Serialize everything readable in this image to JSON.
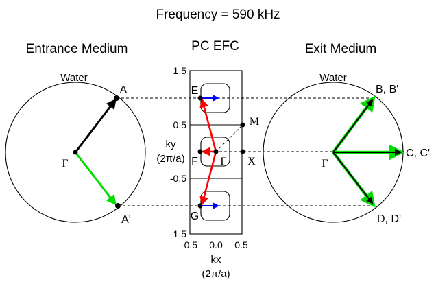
{
  "title": "Frequency = 590 kHz",
  "entrance": {
    "heading": "Entrance Medium",
    "medium": "Water",
    "gamma": "Γ",
    "point_a": "A",
    "point_a_prime": "A'"
  },
  "efc": {
    "heading": "PC EFC",
    "ky_label": "ky",
    "ky_unit": "(2π/a)",
    "kx_label": "kx",
    "kx_unit": "(2π/a)",
    "y_ticks": [
      "1.5",
      "0.5",
      "-0.5",
      "-1.5"
    ],
    "x_ticks": [
      "-0.5",
      "0.0",
      "0.5"
    ],
    "points": {
      "E": "E",
      "F": "F",
      "G": "G",
      "gamma": "Γ",
      "M": "M",
      "X": "X"
    }
  },
  "exit": {
    "heading": "Exit Medium",
    "medium": "Water",
    "gamma": "Γ",
    "point_b": "B, B'",
    "point_c": "C, C'",
    "point_d": "D, D'"
  },
  "colors": {
    "incident": "#000000",
    "reflected": "#00dd00",
    "efc_vector": "#ff0000",
    "group_velocity": "#0000ff"
  }
}
